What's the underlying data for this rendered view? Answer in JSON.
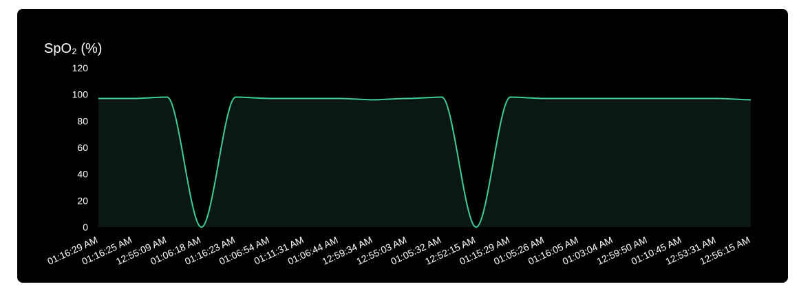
{
  "chart_data": {
    "type": "area",
    "title": "SpO₂ (%)",
    "xlabel": "",
    "ylabel": "",
    "ylim": [
      0,
      120
    ],
    "yticks": [
      0,
      20,
      40,
      60,
      80,
      100,
      120
    ],
    "grid": false,
    "legend": "none",
    "x": [
      "01:16:29 AM",
      "01:16:25 AM",
      "12:55:09 AM",
      "01:06:18 AM",
      "01:16:23 AM",
      "01:06:54 AM",
      "01:11:31 AM",
      "01:06:44 AM",
      "12:59:34 AM",
      "12:55:03 AM",
      "01:05:32 AM",
      "12:52:15 AM",
      "01:15:29 AM",
      "01:05:26 AM",
      "01:16:05 AM",
      "01:03:04 AM",
      "12:59:50 AM",
      "01:10:45 AM",
      "12:53:31 AM",
      "12:56:15 AM"
    ],
    "series": [
      {
        "values": [
          97,
          97,
          98,
          0,
          98,
          97,
          97,
          97,
          96,
          97,
          98,
          0,
          98,
          97,
          97,
          97,
          97,
          97,
          97,
          96
        ]
      }
    ],
    "colors": {
      "line": "#3ecf95",
      "fill": "#0a1712",
      "background": "#000000",
      "text": "#ffffff"
    }
  }
}
